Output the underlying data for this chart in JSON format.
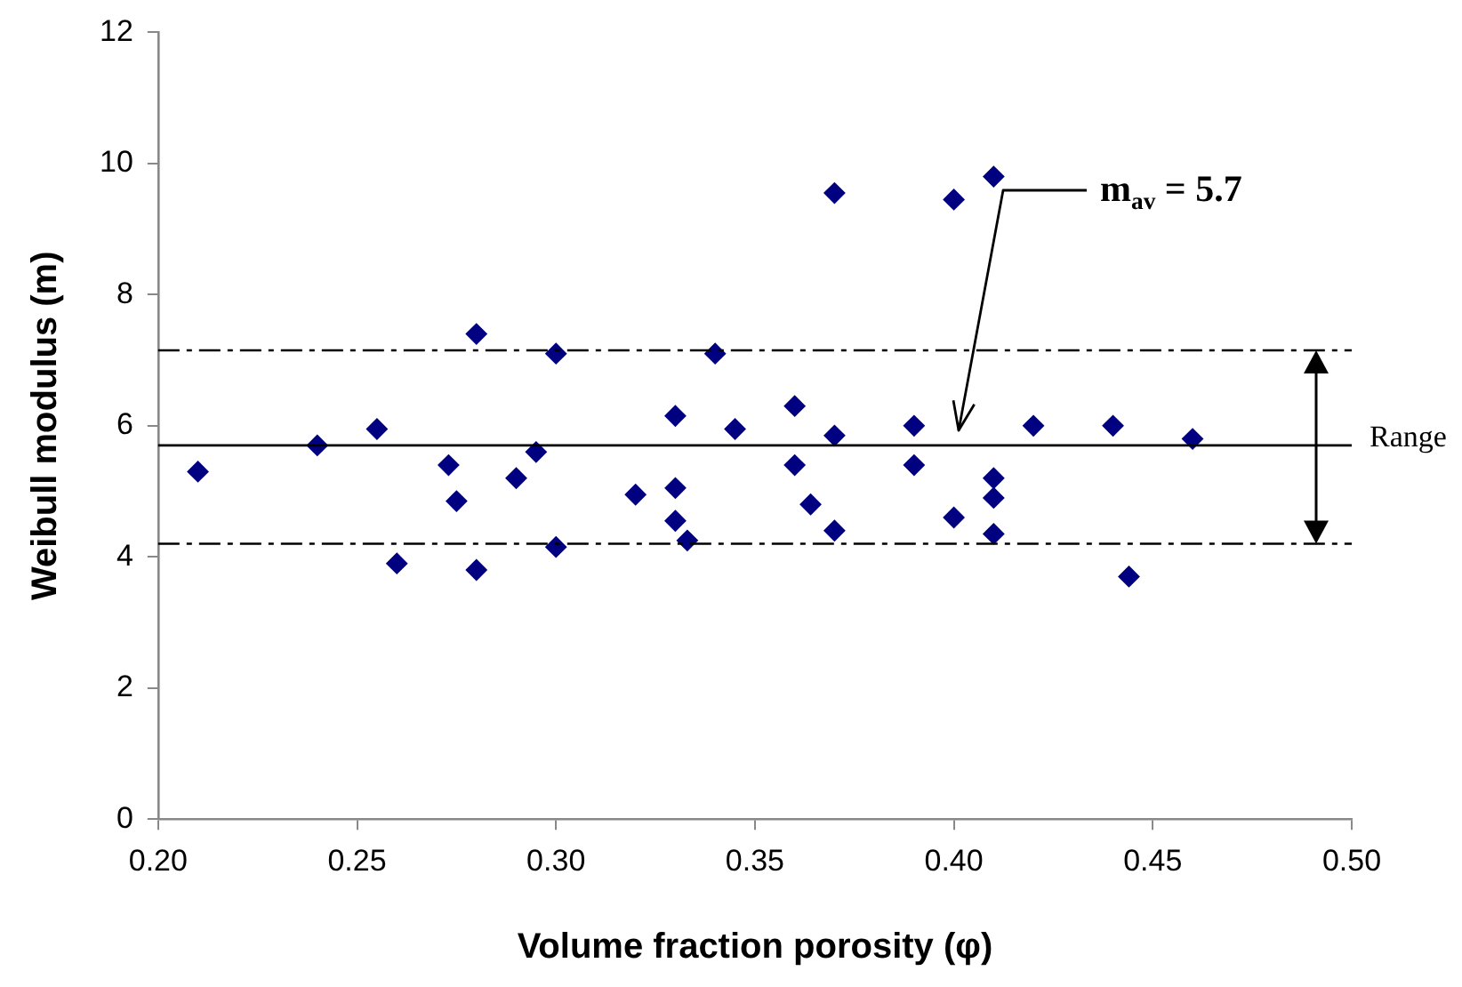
{
  "chart_data": {
    "type": "scatter",
    "xlabel": "Volume fraction porosity (φ)",
    "ylabel": "Weibull modulus (m)",
    "x": [
      0.21,
      0.24,
      0.255,
      0.26,
      0.273,
      0.275,
      0.28,
      0.28,
      0.29,
      0.295,
      0.3,
      0.3,
      0.32,
      0.33,
      0.33,
      0.33,
      0.333,
      0.34,
      0.345,
      0.36,
      0.36,
      0.364,
      0.37,
      0.37,
      0.37,
      0.39,
      0.39,
      0.4,
      0.4,
      0.41,
      0.41,
      0.41,
      0.41,
      0.42,
      0.44,
      0.444,
      0.46
    ],
    "series": [
      {
        "color": "#000080",
        "values": [
          5.3,
          5.7,
          5.95,
          3.9,
          5.4,
          4.85,
          7.4,
          3.8,
          5.2,
          5.6,
          7.1,
          4.15,
          4.95,
          6.15,
          5.05,
          4.55,
          4.25,
          7.1,
          5.95,
          6.3,
          5.4,
          4.8,
          9.55,
          5.85,
          4.4,
          6.0,
          5.4,
          9.45,
          4.6,
          9.8,
          5.2,
          4.9,
          4.35,
          6.0,
          6.0,
          3.7,
          5.8
        ]
      }
    ],
    "marker": "diamond",
    "xlim": [
      0.2,
      0.5
    ],
    "xticks": [
      {
        "value": 0.2,
        "label": "0.20"
      },
      {
        "value": 0.25,
        "label": "0.25"
      },
      {
        "value": 0.3,
        "label": "0.30"
      },
      {
        "value": 0.35,
        "label": "0.35"
      },
      {
        "value": 0.4,
        "label": "0.40"
      },
      {
        "value": 0.45,
        "label": "0.45"
      },
      {
        "value": 0.5,
        "label": "0.50"
      }
    ],
    "ylim": [
      0,
      12
    ],
    "yticks": [
      0,
      2,
      4,
      6,
      8,
      10,
      12
    ],
    "grid": false,
    "legend": false,
    "ref_lines": [
      {
        "axis": "y",
        "value": 5.7,
        "color": "#000000",
        "line_style": "solid"
      },
      {
        "axis": "y",
        "value": 7.15,
        "color": "#000000",
        "line_style": "dashed"
      },
      {
        "axis": "y",
        "value": 4.2,
        "color": "#000000",
        "line_style": "dashed"
      }
    ],
    "annotations": [
      "m$_{av}$ = 5.7",
      "Range"
    ]
  }
}
